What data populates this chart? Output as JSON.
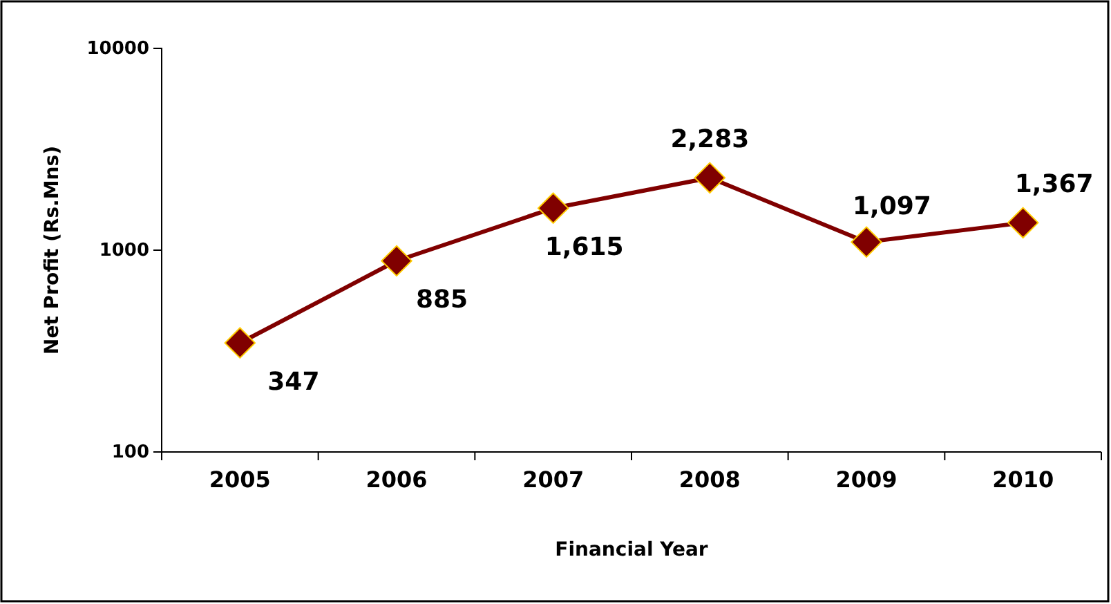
{
  "chart_data": {
    "type": "line",
    "xlabel": "Financial Year",
    "ylabel": "Net Profit (Rs.Mns)",
    "categories": [
      "2005",
      "2006",
      "2007",
      "2008",
      "2009",
      "2010"
    ],
    "series": [
      {
        "color": "#800000",
        "values": [
          347,
          885,
          1615,
          2283,
          1097,
          1367
        ],
        "value_labels": [
          "347",
          "885",
          "1,615",
          "2,283",
          "1,097",
          "1,367"
        ]
      }
    ],
    "log": true,
    "ylim": [
      100,
      10000
    ],
    "yticks": [
      100,
      1000,
      10000
    ],
    "grid": false,
    "marker": "diamond",
    "line_style": "solid"
  }
}
